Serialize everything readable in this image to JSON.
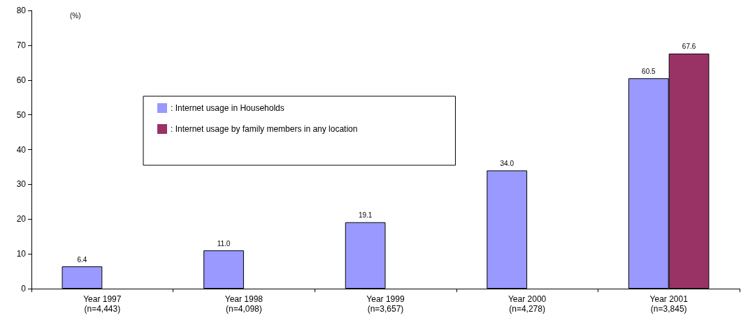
{
  "chart_data": {
    "type": "bar",
    "ylabel": "(%)",
    "categories": [
      "Year 1997\n(n=4,443)",
      "Year 1998\n(n=4,098)",
      "Year 1999\n(n=3,657)",
      "Year 2000\n(n=4,278)",
      "Year 2001\n(n=3,845)"
    ],
    "series": [
      {
        "name": ": Internet usage in Households",
        "color": "#9999ff",
        "values": [
          6.4,
          11.0,
          19.1,
          34.0,
          60.5
        ],
        "value_labels": [
          "6.4",
          "11.0",
          "19.1",
          "34.0",
          "60.5"
        ]
      },
      {
        "name": ": Internet usage by family members in any location",
        "color": "#993366",
        "values": [
          null,
          null,
          null,
          null,
          67.6
        ],
        "value_labels": [
          null,
          null,
          null,
          null,
          "67.6"
        ]
      }
    ],
    "ylim": [
      0,
      80
    ],
    "yticks": [
      0,
      10,
      20,
      30,
      40,
      50,
      60,
      70,
      80
    ],
    "grid": false,
    "legend": "top left"
  }
}
